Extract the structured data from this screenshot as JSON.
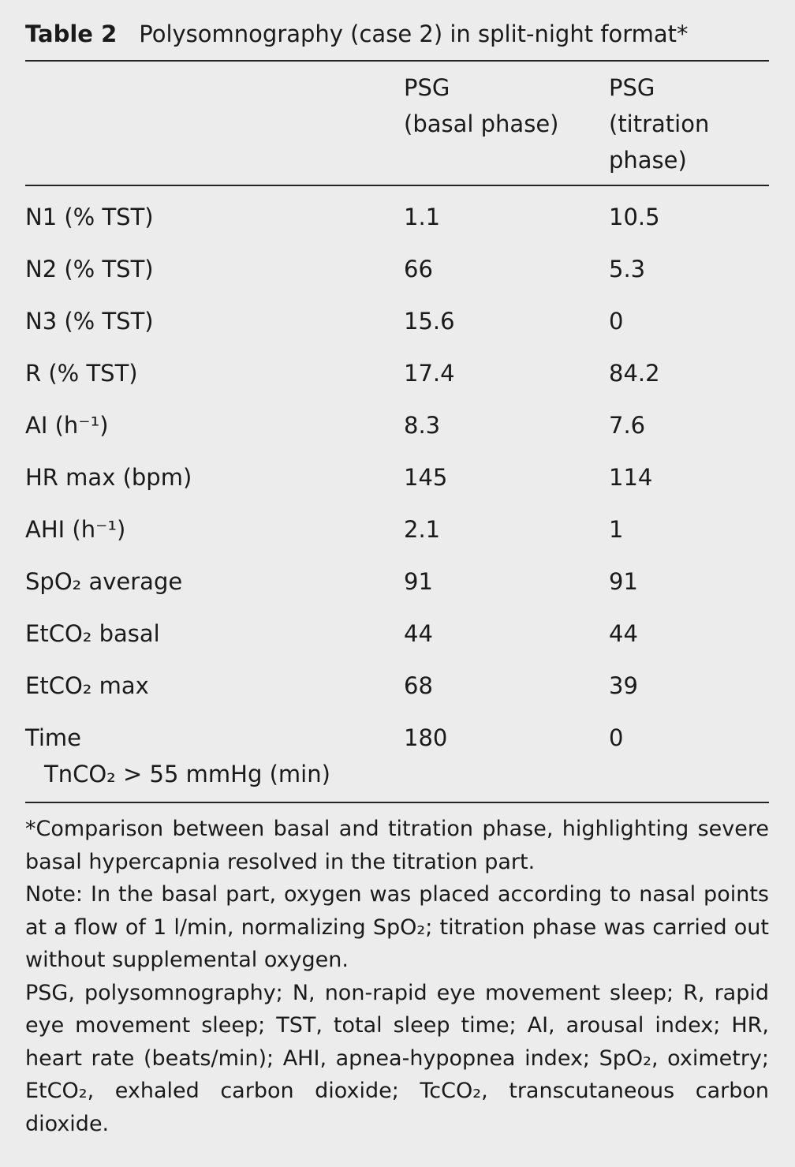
{
  "table": {
    "label": "Table 2",
    "title": "Polysomnography (case 2) in split-night format*",
    "columns": [
      [
        "PSG",
        "(basal phase)"
      ],
      [
        "PSG",
        "(titration",
        "phase)"
      ]
    ],
    "rows": [
      {
        "label": [
          "N1 (% TST)"
        ],
        "values": [
          1.1,
          10.5
        ]
      },
      {
        "label": [
          "N2 (% TST)"
        ],
        "values": [
          66,
          5.3
        ]
      },
      {
        "label": [
          "N3 (% TST)"
        ],
        "values": [
          15.6,
          0
        ]
      },
      {
        "label": [
          "R (% TST)"
        ],
        "values": [
          17.4,
          84.2
        ]
      },
      {
        "label": [
          "AI (h⁻¹)"
        ],
        "values": [
          8.3,
          7.6
        ]
      },
      {
        "label": [
          "HR max (bpm)"
        ],
        "values": [
          145,
          114
        ]
      },
      {
        "label": [
          "AHI (h⁻¹)"
        ],
        "values": [
          2.1,
          1
        ]
      },
      {
        "label": [
          "SpO₂ average"
        ],
        "values": [
          91,
          91
        ]
      },
      {
        "label": [
          "EtCO₂ basal"
        ],
        "values": [
          44,
          44
        ]
      },
      {
        "label": [
          "EtCO₂ max"
        ],
        "values": [
          68,
          39
        ]
      },
      {
        "label": [
          "Time",
          "TnCO₂ > 55 mmHg (min)"
        ],
        "values": [
          180,
          0
        ]
      }
    ],
    "notes": [
      "*Comparison between basal and titration phase, highlighting severe basal hypercapnia resolved in the titration part.",
      "Note: In the basal part, oxygen was placed according to nasal points at a flow of 1 l/min, normalizing SpO₂; titration phase was carried out without supplemental oxygen.",
      "PSG, polysomnography; N, non-rapid eye movement sleep; R, rapid eye movement sleep; TST, total sleep time; AI, arousal index; HR, heart rate (beats/min); AHI, apnea-hypopnea index; SpO₂, oximetry; EtCO₂, exhaled carbon dioxide; TcCO₂, transcutaneous carbon dioxide."
    ]
  }
}
